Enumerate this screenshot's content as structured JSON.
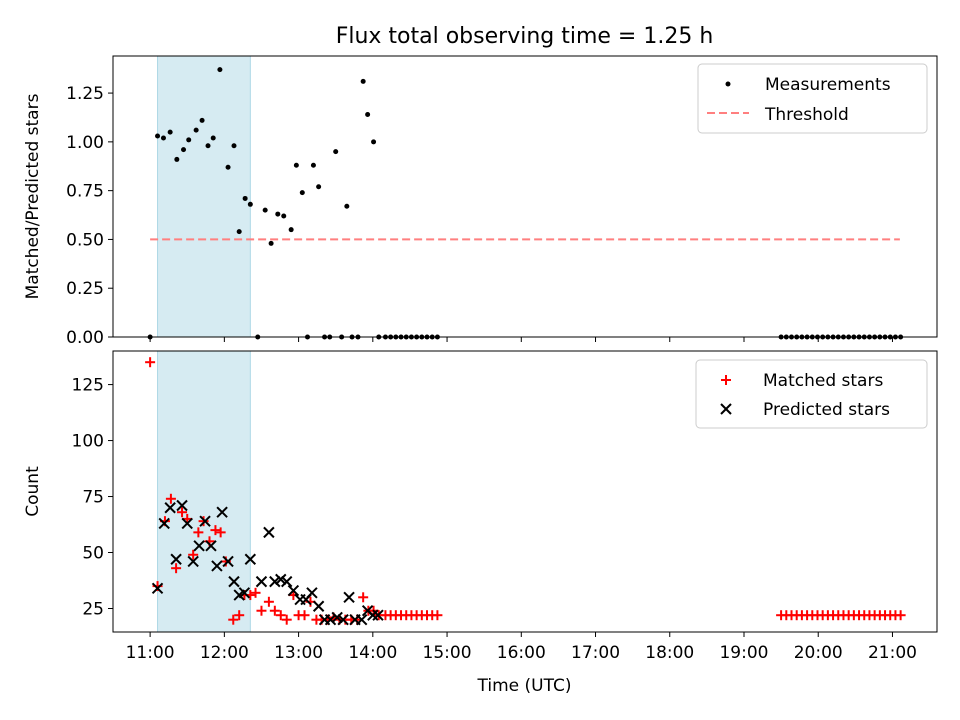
{
  "chart_data": {
    "title": "Flux total observing time = 1.25 h",
    "xlabel": "Time (UTC)",
    "xlim": [
      10.5,
      21.6
    ],
    "x_ticks": [
      11,
      12,
      13,
      14,
      15,
      16,
      17,
      18,
      19,
      20,
      21
    ],
    "x_tick_labels": [
      "11:00",
      "12:00",
      "13:00",
      "14:00",
      "15:00",
      "16:00",
      "17:00",
      "18:00",
      "19:00",
      "20:00",
      "21:00"
    ],
    "shaded_span": [
      11.1,
      12.35
    ],
    "shaded_color": "#add8e6",
    "panels": [
      {
        "type": "scatter",
        "ylabel": "Matched/Predicted stars",
        "ylim": [
          0.0,
          1.44
        ],
        "y_ticks": [
          0.0,
          0.25,
          0.5,
          0.75,
          1.0,
          1.25
        ],
        "y_tick_labels": [
          "0.00",
          "0.25",
          "0.50",
          "0.75",
          "1.00",
          "1.25"
        ],
        "legend": {
          "position": "upper right",
          "measurements_label": "Measurements",
          "threshold_label": "Threshold"
        },
        "threshold": {
          "y": 0.5,
          "x_range": [
            11.0,
            21.1
          ],
          "color": "#ff7f7f",
          "style": "dashed"
        },
        "measurements": {
          "color": "#000000",
          "x": [
            11.0,
            11.1,
            11.18,
            11.27,
            11.36,
            11.45,
            11.52,
            11.62,
            11.7,
            11.78,
            11.85,
            11.94,
            12.05,
            12.13,
            12.2,
            12.28,
            12.35,
            12.45,
            12.55,
            12.63,
            12.72,
            12.8,
            12.9,
            12.97,
            13.05,
            13.12,
            13.2,
            13.27,
            13.35,
            13.42,
            13.5,
            13.58,
            13.65,
            13.72,
            13.8,
            13.87,
            13.93,
            14.01,
            14.08,
            14.17,
            14.24,
            14.31,
            14.38,
            14.45,
            14.52,
            14.59,
            14.66,
            14.73,
            14.8,
            14.87,
            19.5,
            19.57,
            19.64,
            19.71,
            19.78,
            19.85,
            19.92,
            19.99,
            20.06,
            20.13,
            20.2,
            20.27,
            20.34,
            20.41,
            20.48,
            20.55,
            20.62,
            20.69,
            20.76,
            20.83,
            20.9,
            20.97,
            21.04,
            21.11
          ],
          "y": [
            0.0,
            1.03,
            1.02,
            1.05,
            0.91,
            0.96,
            1.01,
            1.06,
            1.11,
            0.98,
            1.02,
            1.37,
            0.87,
            0.98,
            0.54,
            0.71,
            0.68,
            0.0,
            0.65,
            0.48,
            0.63,
            0.62,
            0.55,
            0.88,
            0.74,
            0.0,
            0.88,
            0.77,
            0.0,
            0.0,
            0.95,
            0.0,
            0.67,
            0.0,
            0.0,
            1.31,
            1.14,
            1.0,
            0.0,
            0.0,
            0.0,
            0.0,
            0.0,
            0.0,
            0.0,
            0.0,
            0.0,
            0.0,
            0.0,
            0.0,
            0.0,
            0.0,
            0.0,
            0.0,
            0.0,
            0.0,
            0.0,
            0.0,
            0.0,
            0.0,
            0.0,
            0.0,
            0.0,
            0.0,
            0.0,
            0.0,
            0.0,
            0.0,
            0.0,
            0.0,
            0.0,
            0.0,
            0.0,
            0.0
          ]
        }
      },
      {
        "type": "scatter",
        "ylabel": "Count",
        "ylim": [
          14.5,
          140.0
        ],
        "y_ticks": [
          25,
          50,
          75,
          100,
          125
        ],
        "y_tick_labels": [
          "25",
          "50",
          "75",
          "100",
          "125"
        ],
        "legend": {
          "position": "upper right",
          "matched_label": "Matched stars",
          "predicted_label": "Predicted stars"
        },
        "matched": {
          "color": "#ff0000",
          "marker": "+",
          "x": [
            11.0,
            11.1,
            11.2,
            11.28,
            11.35,
            11.43,
            11.5,
            11.58,
            11.65,
            11.72,
            11.8,
            11.88,
            11.95,
            12.02,
            12.12,
            12.2,
            12.27,
            12.35,
            12.42,
            12.5,
            12.6,
            12.68,
            12.76,
            12.84,
            12.93,
            13.0,
            13.08,
            13.16,
            13.24,
            13.31,
            13.39,
            13.47,
            13.55,
            13.63,
            13.71,
            13.79,
            13.87,
            13.94,
            14.01,
            14.08,
            14.17,
            14.24,
            14.31,
            14.38,
            14.45,
            14.52,
            14.59,
            14.66,
            14.73,
            14.8,
            14.87,
            19.5,
            19.57,
            19.64,
            19.71,
            19.78,
            19.85,
            19.92,
            19.99,
            20.06,
            20.13,
            20.2,
            20.27,
            20.34,
            20.41,
            20.48,
            20.55,
            20.62,
            20.69,
            20.76,
            20.83,
            20.9,
            20.97,
            21.04,
            21.11
          ],
          "y": [
            135,
            35,
            64,
            74,
            43,
            68,
            65,
            49,
            59,
            64,
            55,
            60,
            59,
            46,
            20,
            22,
            31,
            31,
            32,
            24,
            28,
            24,
            22,
            20,
            31,
            22,
            22,
            28,
            20,
            20,
            20,
            21,
            20,
            20,
            20,
            20,
            30,
            24,
            24,
            22,
            22,
            22,
            22,
            22,
            22,
            22,
            22,
            22,
            22,
            22,
            22,
            22,
            22,
            22,
            22,
            22,
            22,
            22,
            22,
            22,
            22,
            22,
            22,
            22,
            22,
            22,
            22,
            22,
            22,
            22,
            22,
            22,
            22,
            22,
            22
          ]
        },
        "predicted": {
          "color": "#000000",
          "marker": "x",
          "x": [
            11.1,
            11.19,
            11.27,
            11.35,
            11.43,
            11.5,
            11.58,
            11.66,
            11.74,
            11.82,
            11.9,
            11.97,
            12.05,
            12.13,
            12.2,
            12.27,
            12.35,
            12.5,
            12.6,
            12.68,
            12.76,
            12.84,
            12.93,
            13.02,
            13.1,
            13.18,
            13.27,
            13.35,
            13.43,
            13.52,
            13.6,
            13.68,
            13.76,
            13.85,
            13.93,
            14.0,
            14.07
          ],
          "y": [
            34,
            63,
            70,
            47,
            71,
            63,
            46,
            53,
            64,
            53,
            44,
            68,
            46,
            37,
            31,
            32,
            47,
            37,
            59,
            37,
            38,
            37,
            33,
            29,
            29,
            32,
            26,
            20,
            20,
            21,
            20,
            30,
            20,
            20,
            24,
            22,
            22
          ]
        }
      }
    ]
  }
}
